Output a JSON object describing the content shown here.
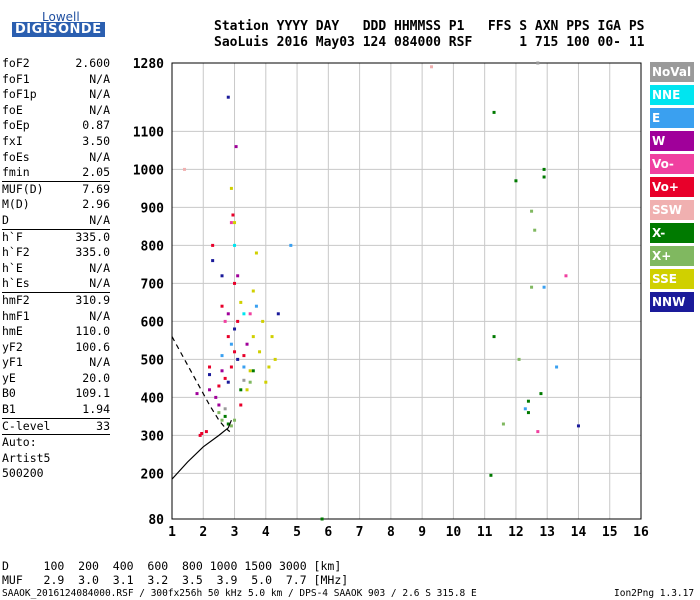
{
  "logo": {
    "line1": "Lowell",
    "line2": "DIGISONDE"
  },
  "header": {
    "line1": "Station YYYY DAY   DDD HHMMSS P1   FFS S AXN PPS IGA PS",
    "line2": "SaoLuis 2016 May03 124 084000 RSF      1 715 100 00- 11"
  },
  "params": [
    {
      "k": "foF2",
      "v": "2.600"
    },
    {
      "k": "foF1",
      "v": "N/A"
    },
    {
      "k": "foF1p",
      "v": "N/A"
    },
    {
      "k": "foE",
      "v": "N/A"
    },
    {
      "k": "foEp",
      "v": "0.87"
    },
    {
      "k": "fxI",
      "v": "3.50"
    },
    {
      "k": "foEs",
      "v": "N/A"
    },
    {
      "k": "fmin",
      "v": "2.05"
    },
    {
      "k": "MUF(D)",
      "v": "7.69",
      "sep": true
    },
    {
      "k": "M(D)",
      "v": "2.96"
    },
    {
      "k": "D",
      "v": "N/A"
    },
    {
      "k": "h`F",
      "v": "335.0",
      "sep": true
    },
    {
      "k": "h`F2",
      "v": "335.0"
    },
    {
      "k": "h`E",
      "v": "N/A"
    },
    {
      "k": "h`Es",
      "v": "N/A"
    },
    {
      "k": "hmF2",
      "v": "310.9",
      "sep": true
    },
    {
      "k": "hmF1",
      "v": "N/A"
    },
    {
      "k": "hmE",
      "v": "110.0"
    },
    {
      "k": "yF2",
      "v": "100.6"
    },
    {
      "k": "yF1",
      "v": "N/A"
    },
    {
      "k": "yE",
      "v": "20.0"
    },
    {
      "k": "B0",
      "v": "109.1"
    },
    {
      "k": "B1",
      "v": "1.94"
    },
    {
      "k": "C-level",
      "v": "33",
      "sep": true
    },
    {
      "k": "Auto:",
      "v": "",
      "sep": true
    },
    {
      "k": "Artist5",
      "v": ""
    },
    {
      "k": "500200",
      "v": ""
    }
  ],
  "legend": [
    {
      "label": "NoVal",
      "color": "#9a9a9a"
    },
    {
      "label": "NNE",
      "color": "#00e5f0"
    },
    {
      "label": "E",
      "color": "#3aa0f0"
    },
    {
      "label": "W",
      "color": "#a0009a"
    },
    {
      "label": "Vo-",
      "color": "#f040a0"
    },
    {
      "label": "Vo+",
      "color": "#e8002a"
    },
    {
      "label": "SSW",
      "color": "#f0b0b0"
    },
    {
      "label": "X-",
      "color": "#007a00"
    },
    {
      "label": "X+",
      "color": "#80b860"
    },
    {
      "label": "SSE",
      "color": "#d0d000"
    },
    {
      "label": "NNW",
      "color": "#1a1a9a"
    }
  ],
  "bottom": {
    "line1": "D     100  200  400  600  800 1000 1500 3000 [km]",
    "line2": "MUF   2.9  3.0  3.1  3.2  3.5  3.9  5.0  7.7 [MHz]"
  },
  "footer": {
    "left": "SAAOK_2016124084000.RSF / 300fx256h 50 kHz 5.0 km / DPS-4 SAAOK 903 / 2.6 S 315.8 E",
    "right": "Ion2Png 1.3.17"
  },
  "chart_data": {
    "type": "scatter",
    "title": "",
    "xlabel": "",
    "ylabel": "",
    "x_ticks": [
      1,
      2,
      3,
      4,
      5,
      6,
      7,
      8,
      9,
      10,
      11,
      12,
      13,
      14,
      15,
      16
    ],
    "y_ticks": [
      80,
      200,
      300,
      400,
      500,
      600,
      700,
      800,
      900,
      1000,
      1100,
      1280
    ],
    "xlim": [
      1,
      16
    ],
    "ylim": [
      80,
      1280
    ],
    "grid": true,
    "series": [
      {
        "color": "#e8002a",
        "points": [
          [
            2.9,
            480
          ],
          [
            3.0,
            520
          ],
          [
            2.8,
            560
          ],
          [
            3.1,
            600
          ],
          [
            2.7,
            450
          ],
          [
            3.3,
            510
          ],
          [
            2.5,
            430
          ],
          [
            3.0,
            700
          ],
          [
            2.95,
            880
          ],
          [
            2.3,
            800
          ],
          [
            2.2,
            480
          ],
          [
            1.9,
            300
          ],
          [
            2.1,
            310
          ],
          [
            1.95,
            305
          ],
          [
            2.6,
            640
          ],
          [
            3.2,
            380
          ]
        ]
      },
      {
        "color": "#d0d000",
        "points": [
          [
            3.5,
            470
          ],
          [
            3.8,
            520
          ],
          [
            3.6,
            560
          ],
          [
            4.1,
            480
          ],
          [
            3.9,
            600
          ],
          [
            3.2,
            650
          ],
          [
            3.0,
            860
          ],
          [
            3.4,
            420
          ],
          [
            4.3,
            500
          ],
          [
            3.7,
            780
          ],
          [
            4.2,
            560
          ],
          [
            2.9,
            950
          ],
          [
            3.6,
            680
          ],
          [
            4.0,
            440
          ]
        ]
      },
      {
        "color": "#a0009a",
        "points": [
          [
            2.4,
            400
          ],
          [
            2.2,
            420
          ],
          [
            2.6,
            470
          ],
          [
            3.1,
            720
          ],
          [
            2.8,
            620
          ],
          [
            3.4,
            540
          ],
          [
            1.8,
            410
          ],
          [
            2.5,
            380
          ],
          [
            3.05,
            1060
          ]
        ]
      },
      {
        "color": "#007a00",
        "points": [
          [
            2.7,
            350
          ],
          [
            2.8,
            330
          ],
          [
            3.2,
            420
          ],
          [
            3.6,
            470
          ],
          [
            11.3,
            1150
          ],
          [
            12.9,
            1000
          ],
          [
            12.0,
            970
          ],
          [
            11.3,
            560
          ],
          [
            12.4,
            390
          ],
          [
            12.4,
            360
          ],
          [
            12.8,
            410
          ],
          [
            11.2,
            195
          ],
          [
            5.8,
            80
          ],
          [
            12.9,
            980
          ]
        ]
      },
      {
        "color": "#80b860",
        "points": [
          [
            2.5,
            360
          ],
          [
            2.6,
            340
          ],
          [
            3.0,
            340
          ],
          [
            3.5,
            440
          ],
          [
            2.9,
            325
          ],
          [
            12.5,
            890
          ],
          [
            12.6,
            840
          ],
          [
            12.5,
            690
          ],
          [
            11.6,
            330
          ],
          [
            12.1,
            500
          ]
        ]
      },
      {
        "color": "#3aa0f0",
        "points": [
          [
            2.9,
            540
          ],
          [
            3.3,
            480
          ],
          [
            3.7,
            640
          ],
          [
            2.6,
            510
          ],
          [
            4.8,
            800
          ],
          [
            12.3,
            370
          ],
          [
            13.3,
            480
          ],
          [
            12.9,
            690
          ]
        ]
      },
      {
        "color": "#1a1a9a",
        "points": [
          [
            2.6,
            720
          ],
          [
            2.2,
            460
          ],
          [
            3.0,
            580
          ],
          [
            2.8,
            440
          ],
          [
            2.3,
            760
          ],
          [
            3.1,
            500
          ],
          [
            2.8,
            1190
          ],
          [
            14.0,
            325
          ],
          [
            4.4,
            620
          ]
        ]
      },
      {
        "color": "#f040a0",
        "points": [
          [
            2.9,
            860
          ],
          [
            2.7,
            600
          ],
          [
            3.5,
            620
          ],
          [
            13.6,
            720
          ],
          [
            12.7,
            310
          ]
        ]
      },
      {
        "color": "#00e5f0",
        "points": [
          [
            3.3,
            620
          ],
          [
            3.0,
            800
          ]
        ]
      },
      {
        "color": "#f0b0b0",
        "points": [
          [
            9.3,
            1270
          ],
          [
            1.4,
            1000
          ]
        ]
      },
      {
        "color": "#9a9a9a",
        "points": [
          [
            2.7,
            370
          ],
          [
            3.3,
            445
          ],
          [
            12.7,
            1280
          ]
        ]
      }
    ],
    "curves": [
      {
        "style": "solid",
        "points": [
          [
            1.0,
            185
          ],
          [
            1.5,
            230
          ],
          [
            2.0,
            270
          ],
          [
            2.5,
            300
          ],
          [
            2.8,
            320
          ],
          [
            2.9,
            340
          ]
        ]
      },
      {
        "style": "dashed",
        "points": [
          [
            1.0,
            560
          ],
          [
            1.4,
            500
          ],
          [
            1.8,
            440
          ],
          [
            2.2,
            380
          ],
          [
            2.5,
            340
          ],
          [
            2.7,
            320
          ],
          [
            2.85,
            310
          ]
        ]
      }
    ]
  }
}
